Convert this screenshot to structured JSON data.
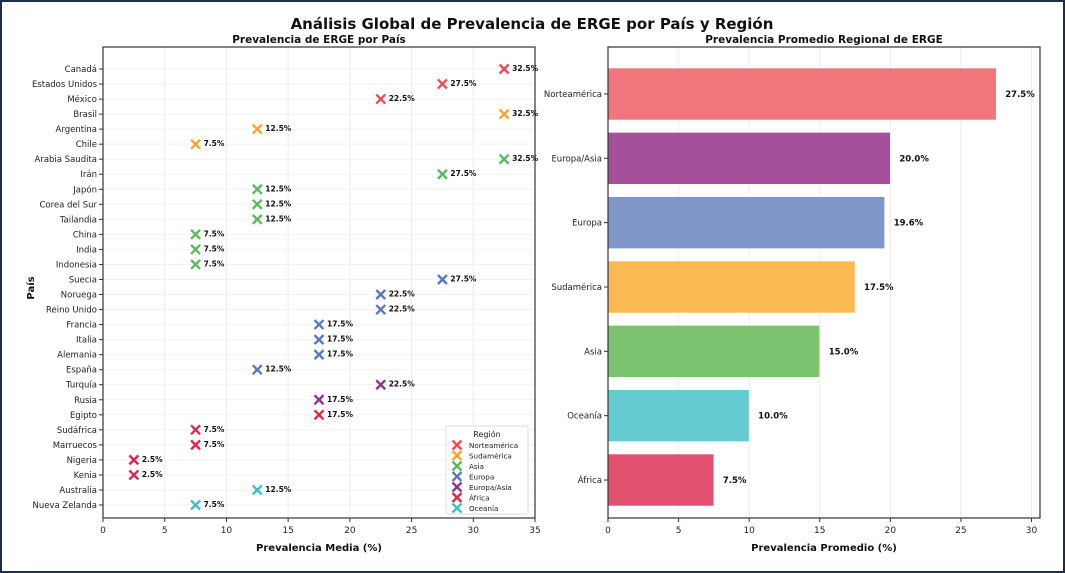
{
  "chart_data": [
    {
      "type": "scatter",
      "suptitle": "Análisis Global de Prevalencia de ERGE por País y Región",
      "title": "Prevalencia de ERGE por País",
      "xlabel": "Prevalencia Media (%)",
      "ylabel": "País",
      "xlim": [
        0,
        35
      ],
      "xticks": [
        "0",
        "5",
        "10",
        "15",
        "20",
        "25",
        "30",
        "35"
      ],
      "grid": true,
      "legend_title": "Región",
      "legend_position": "lower-right",
      "regions": [
        {
          "name": "Norteamérica",
          "color": "#ee4b55"
        },
        {
          "name": "Sudamérica",
          "color": "#ffa32e"
        },
        {
          "name": "Asia",
          "color": "#5cb85c"
        },
        {
          "name": "Europa",
          "color": "#5a78c0"
        },
        {
          "name": "Europa/Asia",
          "color": "#8e3592"
        },
        {
          "name": "África",
          "color": "#e1254d"
        },
        {
          "name": "Oceanía",
          "color": "#3ec0c8"
        }
      ],
      "points": [
        {
          "country": "Canadá",
          "value": 32.5,
          "region": 0,
          "label": "32.5%"
        },
        {
          "country": "Estados Unidos",
          "value": 27.5,
          "region": 0,
          "label": "27.5%"
        },
        {
          "country": "México",
          "value": 22.5,
          "region": 0,
          "label": "22.5%"
        },
        {
          "country": "Brasil",
          "value": 32.5,
          "region": 1,
          "label": "32.5%"
        },
        {
          "country": "Argentina",
          "value": 12.5,
          "region": 1,
          "label": "12.5%"
        },
        {
          "country": "Chile",
          "value": 7.5,
          "region": 1,
          "label": "7.5%"
        },
        {
          "country": "Arabia Saudita",
          "value": 32.5,
          "region": 2,
          "label": "32.5%"
        },
        {
          "country": "Irán",
          "value": 27.5,
          "region": 2,
          "label": "27.5%"
        },
        {
          "country": "Japón",
          "value": 12.5,
          "region": 2,
          "label": "12.5%"
        },
        {
          "country": "Corea del Sur",
          "value": 12.5,
          "region": 2,
          "label": "12.5%"
        },
        {
          "country": "Tailandia",
          "value": 12.5,
          "region": 2,
          "label": "12.5%"
        },
        {
          "country": "China",
          "value": 7.5,
          "region": 2,
          "label": "7.5%"
        },
        {
          "country": "India",
          "value": 7.5,
          "region": 2,
          "label": "7.5%"
        },
        {
          "country": "Indonesia",
          "value": 7.5,
          "region": 2,
          "label": "7.5%"
        },
        {
          "country": "Suecia",
          "value": 27.5,
          "region": 3,
          "label": "27.5%"
        },
        {
          "country": "Noruega",
          "value": 22.5,
          "region": 3,
          "label": "22.5%"
        },
        {
          "country": "Reino Unido",
          "value": 22.5,
          "region": 3,
          "label": "22.5%"
        },
        {
          "country": "Francia",
          "value": 17.5,
          "region": 3,
          "label": "17.5%"
        },
        {
          "country": "Italia",
          "value": 17.5,
          "region": 3,
          "label": "17.5%"
        },
        {
          "country": "Alemania",
          "value": 17.5,
          "region": 3,
          "label": "17.5%"
        },
        {
          "country": "España",
          "value": 12.5,
          "region": 3,
          "label": "12.5%"
        },
        {
          "country": "Turquía",
          "value": 22.5,
          "region": 4,
          "label": "22.5%"
        },
        {
          "country": "Rusia",
          "value": 17.5,
          "region": 4,
          "label": "17.5%"
        },
        {
          "country": "Egipto",
          "value": 17.5,
          "region": 5,
          "label": "17.5%"
        },
        {
          "country": "Sudáfrica",
          "value": 7.5,
          "region": 5,
          "label": "7.5%"
        },
        {
          "country": "Marruecos",
          "value": 7.5,
          "region": 5,
          "label": "7.5%"
        },
        {
          "country": "Nigeria",
          "value": 2.5,
          "region": 5,
          "label": "2.5%"
        },
        {
          "country": "Kenia",
          "value": 2.5,
          "region": 5,
          "label": "2.5%"
        },
        {
          "country": "Australia",
          "value": 12.5,
          "region": 6,
          "label": "12.5%"
        },
        {
          "country": "Nueva Zelanda",
          "value": 7.5,
          "region": 6,
          "label": "7.5%"
        }
      ]
    },
    {
      "type": "bar",
      "orientation": "horizontal",
      "title": "Prevalencia Promedio Regional de ERGE",
      "xlabel": "Prevalencia Promedio (%)",
      "xlim": [
        0,
        30.6
      ],
      "xticks": [
        "0",
        "5",
        "10",
        "15",
        "20",
        "25",
        "30"
      ],
      "grid": true,
      "categories": [
        "Norteamérica",
        "Europa/Asia",
        "Europa",
        "Sudamérica",
        "Asia",
        "Oceanía",
        "África"
      ],
      "values": [
        27.5,
        20.0,
        19.6,
        17.5,
        15.0,
        10.0,
        7.5
      ],
      "labels": [
        "27.5%",
        "20.0%",
        "19.6%",
        "17.5%",
        "15.0%",
        "10.0%",
        "7.5%"
      ],
      "colors": [
        "#f0767b",
        "#a4509b",
        "#7f96c8",
        "#fbb954",
        "#7cc36f",
        "#66cbd0",
        "#e2506f"
      ]
    }
  ]
}
